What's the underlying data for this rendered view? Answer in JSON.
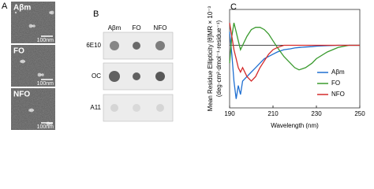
{
  "panel_a": {
    "letter": "A",
    "images": [
      {
        "label": "Aβm",
        "scale": "100nm"
      },
      {
        "label": "FO",
        "scale": "100nm"
      },
      {
        "label": "NFO",
        "scale": "100nm"
      }
    ]
  },
  "panel_b": {
    "letter": "B",
    "columns": [
      "Aβm",
      "FO",
      "NFO"
    ],
    "rows": [
      "6E10",
      "OC",
      "A11"
    ]
  },
  "chart_data": {
    "type": "line",
    "letter": "C",
    "x_label": "Wavelength (nm)",
    "y_label": [
      "Mean Residue Ellipticity [θ]MR × 10⁻³",
      "(deg·cm²·dmol⁻¹·residue⁻¹)"
    ],
    "x": [
      190,
      191,
      192,
      193,
      194,
      195,
      196,
      198,
      200,
      202,
      204,
      206,
      208,
      210,
      212,
      215,
      218,
      220,
      222,
      225,
      228,
      230,
      235,
      240,
      245,
      250
    ],
    "xlim": [
      190,
      250
    ],
    "xticks": [
      190,
      210,
      230,
      250
    ],
    "ylim": [
      -14,
      8
    ],
    "legend": "right",
    "series": [
      {
        "name": "Aβm",
        "color": "#1f6fd1",
        "values": [
          3,
          -2,
          -8,
          -12,
          -9,
          -11,
          -8,
          -7,
          -6,
          -5,
          -4,
          -3,
          -2.5,
          -2,
          -1.5,
          -1,
          -0.8,
          -0.6,
          -0.5,
          -0.4,
          -0.3,
          -0.2,
          -0.1,
          0,
          0,
          0
        ]
      },
      {
        "name": "FO",
        "color": "#3a9a2e",
        "values": [
          -4,
          2,
          5,
          3,
          1,
          -1,
          0,
          2,
          3.5,
          4,
          4,
          3.5,
          2.5,
          1,
          -0.5,
          -2.5,
          -4,
          -5,
          -5.5,
          -5,
          -4,
          -3,
          -1.5,
          -0.5,
          0,
          0
        ]
      },
      {
        "name": "NFO",
        "color": "#d42a2a",
        "values": [
          5,
          2,
          -1,
          -3,
          -5,
          -6,
          -5,
          -7,
          -8,
          -7,
          -5,
          -3.5,
          -2,
          -1,
          -0.5,
          0,
          0,
          0,
          0,
          0,
          0,
          0,
          0,
          0,
          0,
          0
        ]
      }
    ]
  }
}
